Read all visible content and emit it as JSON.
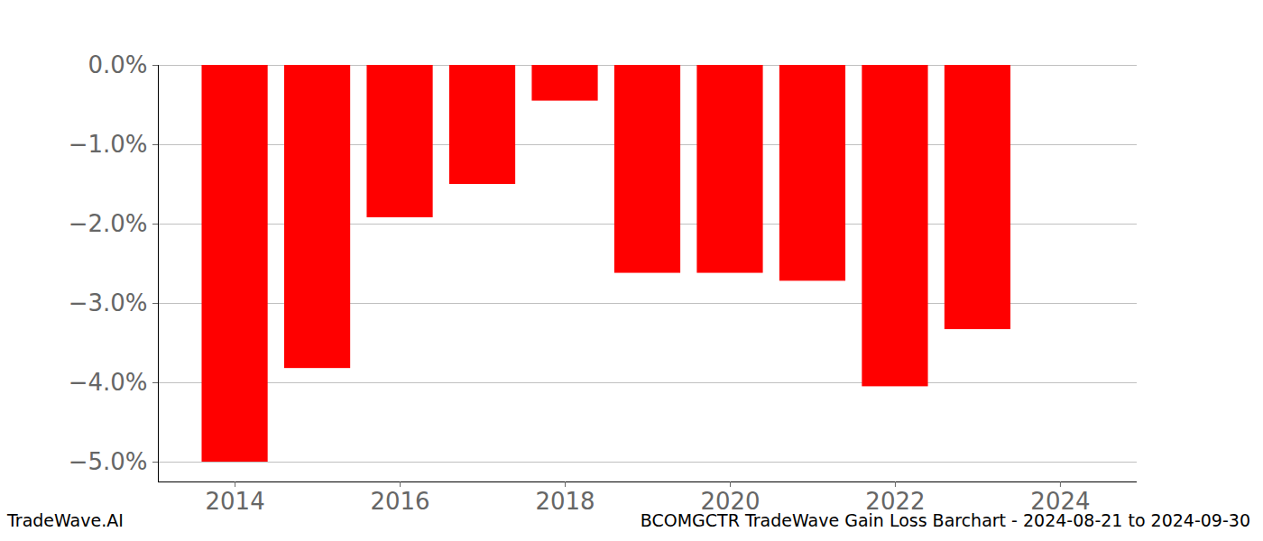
{
  "chart_data": {
    "type": "bar",
    "title": "BCOMGCTR TradeWave Gain Loss Barchart - 2024-08-21 to 2024-09-30",
    "caption": "TradeWave.AI",
    "x": [
      2014,
      2015,
      2016,
      2017,
      2018,
      2019,
      2020,
      2021,
      2022,
      2023
    ],
    "values": [
      -5.0,
      -3.82,
      -1.92,
      -1.5,
      -0.45,
      -2.62,
      -2.62,
      -2.72,
      -4.05,
      -3.33
    ],
    "color": "#ff0000",
    "xlim": [
      2013.07,
      2024.93
    ],
    "xticks": [
      2014,
      2016,
      2018,
      2020,
      2022,
      2024
    ],
    "ylim": [
      -5.25,
      0
    ],
    "yticks": [
      {
        "value": 0,
        "label": "0.0%"
      },
      {
        "value": -1,
        "label": "−1.0%"
      },
      {
        "value": -2,
        "label": "−2.0%"
      },
      {
        "value": -3,
        "label": "−3.0%"
      },
      {
        "value": -4,
        "label": "−4.0%"
      },
      {
        "value": -5,
        "label": "−5.0%"
      }
    ],
    "grid": true
  }
}
